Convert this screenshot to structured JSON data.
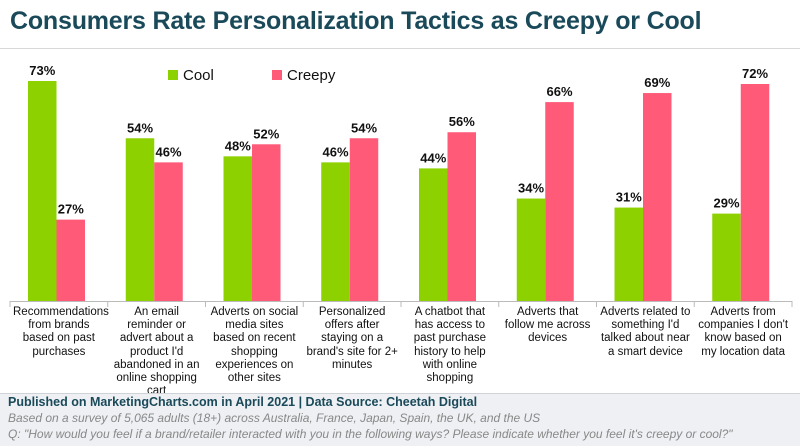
{
  "chart_data": {
    "type": "bar",
    "title": "Consumers Rate Personalization Tactics as Creepy or Cool",
    "categories": [
      "Recommendations from brands based on past purchases",
      "An email reminder or advert about a product I'd abandoned in an online shopping cart",
      "Adverts on social media sites based on recent shopping experiences on other sites",
      "Personalized offers after staying on a brand's site for 2+ minutes",
      "A chatbot that has access to past purchase history to help with online shopping",
      "Adverts that follow me across devices",
      "Adverts related to something I'd talked about near a smart device",
      "Adverts from companies I don't know based on my location data"
    ],
    "series": [
      {
        "name": "Cool",
        "color": "#8ed100",
        "values": [
          73,
          54,
          48,
          46,
          44,
          34,
          31,
          29
        ]
      },
      {
        "name": "Creepy",
        "color": "#ff5a78",
        "values": [
          27,
          46,
          52,
          54,
          56,
          66,
          69,
          72
        ]
      }
    ],
    "value_suffix": "%",
    "ylim": [
      0,
      73
    ],
    "xlabel": "",
    "ylabel": "",
    "legend": "top-center"
  },
  "footer": {
    "published": "Published on MarketingCharts.com in April 2021 | Data Source: Cheetah Digital",
    "note1": "Based on a survey of 5,065 adults (18+) across Australia, France, Japan, Spain, the UK, and the US",
    "note2": "Q: \"How would you feel if a brand/retailer interacted with you in the following ways? Please indicate whether you feel it's creepy or cool?\""
  }
}
